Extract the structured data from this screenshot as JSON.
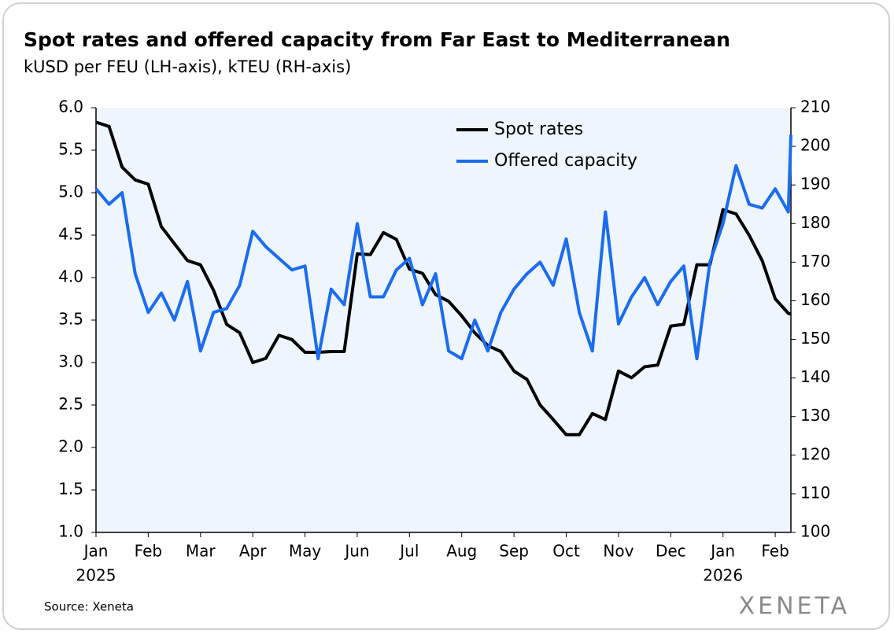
{
  "chart_data": {
    "type": "line",
    "title": "Spot rates and offered capacity from Far East to Mediterranean",
    "subtitle": "kUSD per FEU (LH-axis), kTEU (RH-axis)",
    "source": "Source: Xeneta",
    "logo": "XENETA",
    "x": [
      0,
      0.25,
      0.5,
      0.75,
      1,
      1.25,
      1.5,
      1.75,
      2,
      2.25,
      2.5,
      2.75,
      3,
      3.25,
      3.5,
      3.75,
      4,
      4.25,
      4.5,
      4.75,
      5,
      5.25,
      5.5,
      5.75,
      6,
      6.25,
      6.5,
      6.75,
      7,
      7.25,
      7.5,
      7.75,
      8,
      8.25,
      8.5,
      8.75,
      9,
      9.25,
      9.5,
      9.75,
      10,
      10.25,
      10.5,
      10.75,
      11,
      11.25,
      11.5,
      11.75,
      12,
      12.25,
      12.5,
      12.75,
      13,
      13.25,
      13.3
    ],
    "xlim": [
      0,
      13.3
    ],
    "xticks": [
      {
        "value": 0,
        "label": "Jan"
      },
      {
        "value": 1,
        "label": "Feb"
      },
      {
        "value": 2,
        "label": "Mar"
      },
      {
        "value": 3,
        "label": "Apr"
      },
      {
        "value": 4,
        "label": "May"
      },
      {
        "value": 5,
        "label": "Jun"
      },
      {
        "value": 6,
        "label": "Jul"
      },
      {
        "value": 7,
        "label": "Aug"
      },
      {
        "value": 8,
        "label": "Sep"
      },
      {
        "value": 9,
        "label": "Oct"
      },
      {
        "value": 10,
        "label": "Nov"
      },
      {
        "value": 11,
        "label": "Dec"
      },
      {
        "value": 12,
        "label": "Jan"
      },
      {
        "value": 13,
        "label": "Feb"
      }
    ],
    "year_labels": [
      {
        "value": 0,
        "label": "2025"
      },
      {
        "value": 12,
        "label": "2026"
      }
    ],
    "ylim": [
      1,
      6
    ],
    "yticks": [
      {
        "value": 1,
        "label": "1.0"
      },
      1.5,
      {
        "value": 2,
        "label": "2.0"
      },
      2.5,
      {
        "value": 3,
        "label": "3.0"
      },
      3.5,
      {
        "value": 4,
        "label": "4.0"
      },
      4.5,
      {
        "value": 5,
        "label": "5.0"
      },
      5.5,
      {
        "value": 6,
        "label": "6.0"
      }
    ],
    "y2lim": [
      100,
      210
    ],
    "y2ticks": [
      100,
      110,
      120,
      130,
      140,
      150,
      160,
      170,
      180,
      190,
      200,
      210
    ],
    "legend": "top-center",
    "series": [
      {
        "name": "Spot rates",
        "color": "#000000",
        "axis": "y",
        "values": [
          5.83,
          5.78,
          5.3,
          5.15,
          5.1,
          4.6,
          4.4,
          4.2,
          4.15,
          3.85,
          3.45,
          3.35,
          3.0,
          3.05,
          3.32,
          3.27,
          3.12,
          3.12,
          3.13,
          3.13,
          4.28,
          4.27,
          4.53,
          4.45,
          4.1,
          4.05,
          3.8,
          3.72,
          3.55,
          3.35,
          3.2,
          3.13,
          2.9,
          2.8,
          2.5,
          2.33,
          2.15,
          2.15,
          2.4,
          2.33,
          2.9,
          2.82,
          2.95,
          2.97,
          3.43,
          3.45,
          4.15,
          4.15,
          4.8,
          4.75,
          4.5,
          4.2,
          3.75,
          3.58,
          3.57
        ]
      },
      {
        "name": "Offered capacity",
        "color": "#1a6cf0",
        "axis": "y2",
        "values": [
          189,
          185,
          188,
          167,
          157,
          162,
          155,
          165,
          147,
          157,
          158,
          164,
          178,
          174,
          171,
          168,
          169,
          145,
          163,
          159,
          180,
          161,
          161,
          168,
          171,
          159,
          167,
          147,
          145,
          155,
          147,
          157,
          163,
          167,
          170,
          164,
          176,
          157,
          147,
          183,
          154,
          161,
          166,
          159,
          165,
          169,
          145,
          170,
          180,
          195,
          185,
          184,
          189,
          183,
          203
        ]
      }
    ]
  }
}
